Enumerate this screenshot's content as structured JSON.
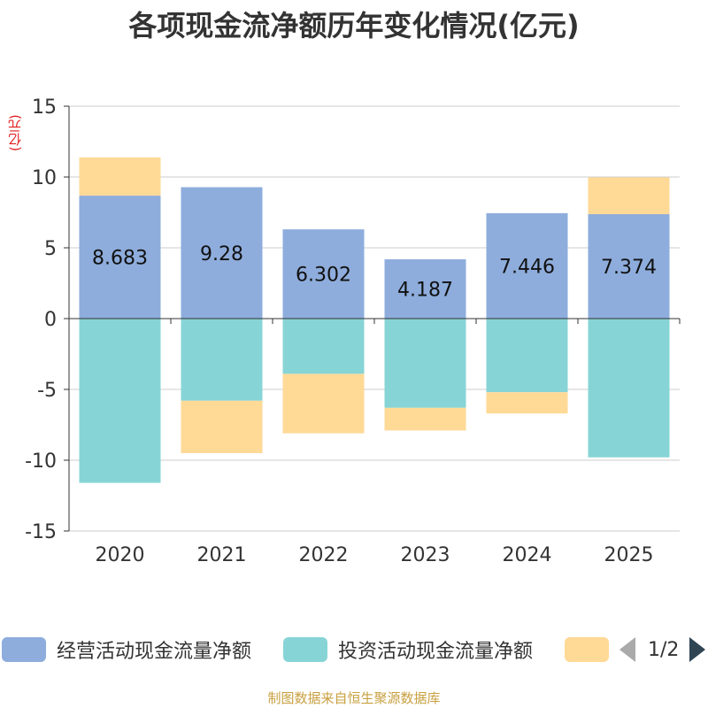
{
  "title": "各项现金流净额历年变化情况(亿元)",
  "unit_label": "(亿元)",
  "source": "制图数据来自恒生聚源数据库",
  "legend": {
    "items": [
      {
        "label": "经营活动现金流量净额",
        "color": "#8eaddc"
      },
      {
        "label": "投资活动现金流量净额",
        "color": "#87d4d6"
      },
      {
        "label": "",
        "color": "#ffd996"
      }
    ],
    "page": "1/2"
  },
  "chart_data": {
    "type": "bar",
    "stacked": true,
    "categories": [
      "2020",
      "2021",
      "2022",
      "2023",
      "2024",
      "2025"
    ],
    "ylim": [
      -15,
      15
    ],
    "yticks": [
      15,
      10,
      5,
      0,
      -5,
      -10,
      -15
    ],
    "grid": true,
    "series": [
      {
        "name": "经营活动现金流量净额",
        "color": "#8eaddc",
        "values": [
          8.683,
          9.28,
          6.302,
          4.187,
          7.446,
          7.374
        ],
        "labels": [
          "8.683",
          "9.28",
          "6.302",
          "4.187",
          "7.446",
          "7.374"
        ]
      },
      {
        "name": "投资活动现金流量净额",
        "color": "#87d4d6",
        "values": [
          -11.6,
          -5.8,
          -3.9,
          -6.3,
          -5.2,
          -9.8
        ]
      },
      {
        "name": "",
        "color": "#ffd996",
        "values": [
          2.7,
          -3.7,
          -4.2,
          -1.6,
          -1.5,
          2.6
        ]
      }
    ]
  }
}
